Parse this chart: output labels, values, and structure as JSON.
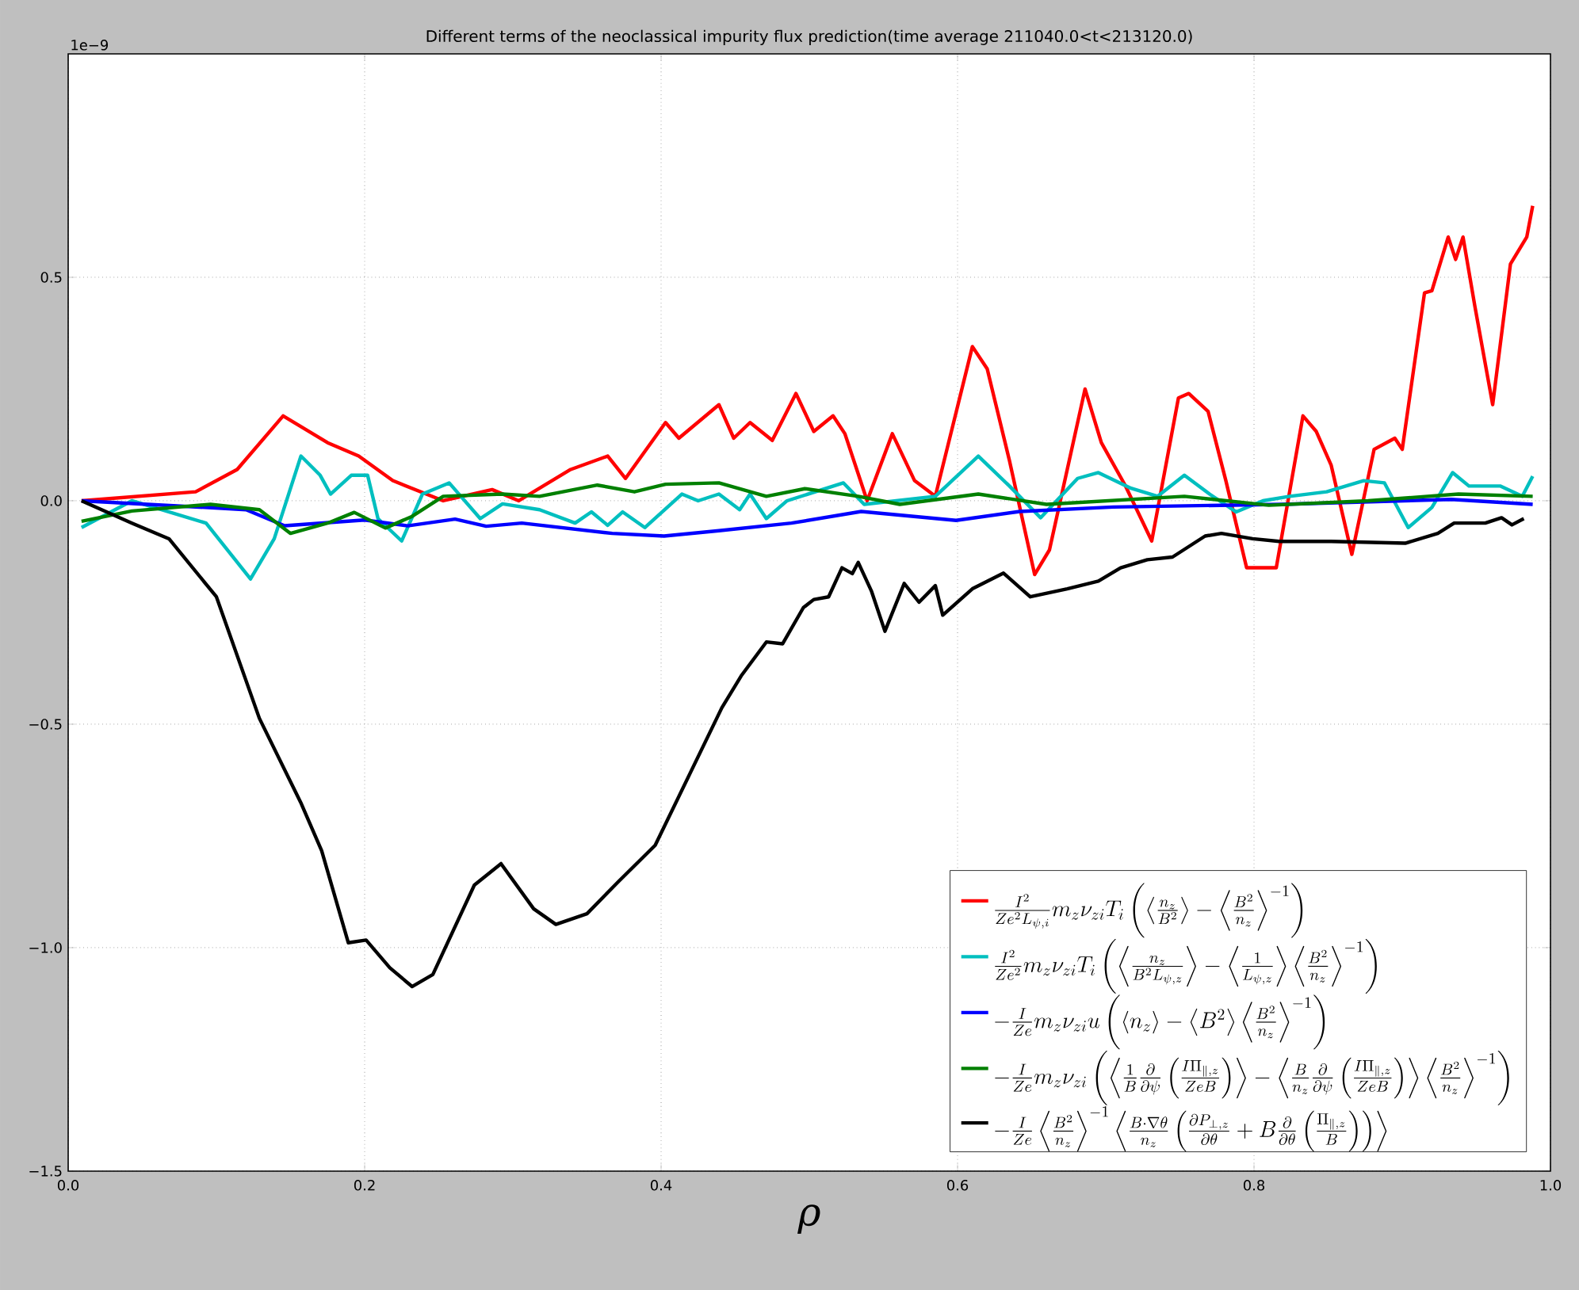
{
  "chart_data": {
    "type": "line",
    "title": "Different terms of the neoclassical impurity flux prediction(time average 211040.0<t<213120.0)",
    "xlabel": "ρ",
    "annotations": [
      "1e−9"
    ],
    "xlim": [
      0.0,
      1.0
    ],
    "ylim": [
      -1.5,
      1.0
    ],
    "xticks": [
      {
        "value": 0.0,
        "label": "0.0"
      },
      {
        "value": 0.2,
        "label": "0.2"
      },
      {
        "value": 0.4,
        "label": "0.4"
      },
      {
        "value": 0.6,
        "label": "0.6"
      },
      {
        "value": 0.8,
        "label": "0.8"
      },
      {
        "value": 1.0,
        "label": "1.0"
      }
    ],
    "yticks": [
      {
        "value": -1.5,
        "label": "−1.5"
      },
      {
        "value": -1.0,
        "label": "−1.0"
      },
      {
        "value": -0.5,
        "label": "−0.5"
      },
      {
        "value": 0.0,
        "label": "0.0"
      },
      {
        "value": 0.5,
        "label": "0.5"
      }
    ],
    "grid": true,
    "legend": "bottom right",
    "marker": "none",
    "line_style": "solid",
    "series": [
      {
        "name": "\\frac{I^2}{Ze^2L_{\\psi,i}}m_z\\nu_{zi}T_i\\left(\\left\\langle\\frac{n_z}{B^2}\\right\\rangle-\\left\\langle\\frac{B^2}{n_z}\\right\\rangle^{-1}\\right)",
        "color": "#ff0000",
        "x": [
          0.009,
          0.086,
          0.114,
          0.145,
          0.175,
          0.196,
          0.219,
          0.253,
          0.286,
          0.304,
          0.339,
          0.364,
          0.376,
          0.403,
          0.412,
          0.439,
          0.449,
          0.46,
          0.475,
          0.491,
          0.503,
          0.516,
          0.524,
          0.539,
          0.556,
          0.571,
          0.585,
          0.61,
          0.62,
          0.635,
          0.652,
          0.662,
          0.686,
          0.697,
          0.713,
          0.731,
          0.749,
          0.756,
          0.769,
          0.781,
          0.795,
          0.806,
          0.815,
          0.833,
          0.842,
          0.852,
          0.866,
          0.881,
          0.895,
          0.9,
          0.915,
          0.92,
          0.931,
          0.936,
          0.941,
          0.949,
          0.961,
          0.973,
          0.984,
          0.988
        ],
        "values": [
          0.0,
          0.02,
          0.07,
          0.19,
          0.13,
          0.1,
          0.045,
          0.0,
          0.025,
          0.0,
          0.07,
          0.1,
          0.05,
          0.175,
          0.14,
          0.215,
          0.14,
          0.175,
          0.135,
          0.24,
          0.155,
          0.19,
          0.15,
          0.0,
          0.15,
          0.045,
          0.01,
          0.345,
          0.295,
          0.09,
          -0.165,
          -0.11,
          0.25,
          0.13,
          0.035,
          -0.09,
          0.23,
          0.24,
          0.2,
          0.045,
          -0.15,
          -0.15,
          -0.15,
          0.19,
          0.155,
          0.08,
          -0.12,
          0.115,
          0.14,
          0.115,
          0.465,
          0.47,
          0.59,
          0.54,
          0.59,
          0.435,
          0.215,
          0.53,
          0.59,
          0.66
        ]
      },
      {
        "name": "\\frac{I^2}{Ze^2}m_z\\nu_{zi}T_i\\left(\\left\\langle\\frac{n_z}{B^2L_{\\psi,z}}\\right\\rangle-\\left\\langle\\frac{1}{L_{\\psi,z}}\\right\\rangle\\left\\langle\\frac{B^2}{n_z}\\right\\rangle^{-1}\\right)",
        "color": "#00bfbf",
        "x": [
          0.009,
          0.043,
          0.093,
          0.123,
          0.139,
          0.157,
          0.17,
          0.177,
          0.191,
          0.202,
          0.209,
          0.225,
          0.239,
          0.257,
          0.278,
          0.293,
          0.318,
          0.342,
          0.353,
          0.364,
          0.374,
          0.389,
          0.414,
          0.425,
          0.439,
          0.453,
          0.46,
          0.471,
          0.485,
          0.523,
          0.537,
          0.585,
          0.614,
          0.635,
          0.656,
          0.681,
          0.695,
          0.717,
          0.735,
          0.753,
          0.77,
          0.788,
          0.806,
          0.824,
          0.849,
          0.874,
          0.888,
          0.904,
          0.92,
          0.934,
          0.945,
          0.966,
          0.981,
          0.988
        ],
        "values": [
          -0.06,
          0.0,
          -0.05,
          -0.175,
          -0.085,
          0.1,
          0.057,
          0.015,
          0.057,
          0.057,
          -0.04,
          -0.09,
          0.015,
          0.04,
          -0.04,
          -0.007,
          -0.02,
          -0.05,
          -0.025,
          -0.055,
          -0.025,
          -0.06,
          0.015,
          0.0,
          0.015,
          -0.02,
          0.015,
          -0.04,
          0.0,
          0.04,
          -0.008,
          0.01,
          0.1,
          0.033,
          -0.038,
          0.05,
          0.063,
          0.028,
          0.01,
          0.057,
          0.015,
          -0.025,
          0.0,
          0.01,
          0.02,
          0.045,
          0.04,
          -0.06,
          -0.015,
          0.063,
          0.033,
          0.033,
          0.01,
          0.055
        ]
      },
      {
        "name": "-\\frac{I}{Ze}m_z\\nu_{zi}u\\left(\\left\\langle n_z\\right\\rangle-\\left\\langle B^2\\right\\rangle\\left\\langle\\frac{B^2}{n_z}\\right\\rangle^{-1}\\right)",
        "color": "#0000ff",
        "x": [
          0.009,
          0.12,
          0.146,
          0.2,
          0.229,
          0.261,
          0.282,
          0.306,
          0.367,
          0.402,
          0.439,
          0.488,
          0.535,
          0.599,
          0.642,
          0.705,
          0.819,
          0.933,
          0.988
        ],
        "values": [
          0.0,
          -0.02,
          -0.056,
          -0.043,
          -0.056,
          -0.041,
          -0.057,
          -0.05,
          -0.073,
          -0.079,
          -0.067,
          -0.05,
          -0.024,
          -0.044,
          -0.024,
          -0.014,
          -0.008,
          0.003,
          -0.008
        ]
      },
      {
        "name": "-\\frac{I}{Ze}m_z\\nu_{zi}\\left(\\left\\langle\\frac{1}{B}\\frac{\\partial}{\\partial\\psi}\\left(\\frac{I\\Pi_{\\parallel,z}}{ZeB}\\right)\\right\\rangle-\\left\\langle\\frac{B}{n_z}\\frac{\\partial}{\\partial\\psi}\\left(\\frac{I\\Pi_{\\parallel,z}}{ZeB}\\right)\\right\\rangle\\left\\langle\\frac{B^2}{n_z}\\right\\rangle^{-1}\\right)",
        "color": "#008000",
        "x": [
          0.009,
          0.043,
          0.096,
          0.129,
          0.15,
          0.175,
          0.193,
          0.214,
          0.232,
          0.253,
          0.293,
          0.318,
          0.357,
          0.382,
          0.403,
          0.439,
          0.471,
          0.497,
          0.533,
          0.561,
          0.614,
          0.66,
          0.753,
          0.81,
          0.877,
          0.938,
          0.988
        ],
        "values": [
          -0.046,
          -0.023,
          -0.008,
          -0.02,
          -0.073,
          -0.05,
          -0.026,
          -0.061,
          -0.035,
          0.01,
          0.015,
          0.01,
          0.035,
          0.02,
          0.037,
          0.04,
          0.01,
          0.027,
          0.01,
          -0.008,
          0.015,
          -0.008,
          0.01,
          -0.01,
          0.0,
          0.015,
          0.01
        ]
      },
      {
        "name": "-\\frac{I}{Ze}\\left\\langle\\frac{B^2}{n_z}\\right\\rangle^{-1}\\left\\langle\\frac{B\\cdot\\nabla\\theta}{n_z}\\left(\\frac{\\partial P_{\\perp,z}}{\\partial\\theta}+B\\frac{\\partial}{\\partial\\theta}\\left(\\frac{\\Pi_{\\parallel,z}}{B}\\right)\\right)\\right\\rangle",
        "color": "#000000",
        "x": [
          0.009,
          0.043,
          0.068,
          0.1,
          0.129,
          0.157,
          0.171,
          0.189,
          0.201,
          0.217,
          0.232,
          0.246,
          0.274,
          0.292,
          0.314,
          0.329,
          0.35,
          0.371,
          0.396,
          0.441,
          0.454,
          0.471,
          0.482,
          0.496,
          0.503,
          0.513,
          0.522,
          0.529,
          0.533,
          0.542,
          0.551,
          0.564,
          0.574,
          0.585,
          0.59,
          0.61,
          0.631,
          0.649,
          0.674,
          0.695,
          0.71,
          0.728,
          0.745,
          0.767,
          0.778,
          0.799,
          0.817,
          0.852,
          0.902,
          0.924,
          0.935,
          0.956,
          0.967,
          0.974,
          0.982
        ],
        "values": [
          0.0,
          -0.05,
          -0.085,
          -0.215,
          -0.487,
          -0.676,
          -0.783,
          -0.989,
          -0.983,
          -1.045,
          -1.087,
          -1.06,
          -0.86,
          -0.812,
          -0.913,
          -0.948,
          -0.924,
          -0.853,
          -0.771,
          -0.463,
          -0.392,
          -0.316,
          -0.32,
          -0.239,
          -0.221,
          -0.215,
          -0.15,
          -0.163,
          -0.138,
          -0.203,
          -0.292,
          -0.185,
          -0.227,
          -0.19,
          -0.256,
          -0.197,
          -0.162,
          -0.215,
          -0.197,
          -0.18,
          -0.15,
          -0.132,
          -0.126,
          -0.079,
          -0.073,
          -0.085,
          -0.091,
          -0.091,
          -0.095,
          -0.073,
          -0.05,
          -0.05,
          -0.038,
          -0.054,
          -0.04
        ]
      }
    ]
  }
}
